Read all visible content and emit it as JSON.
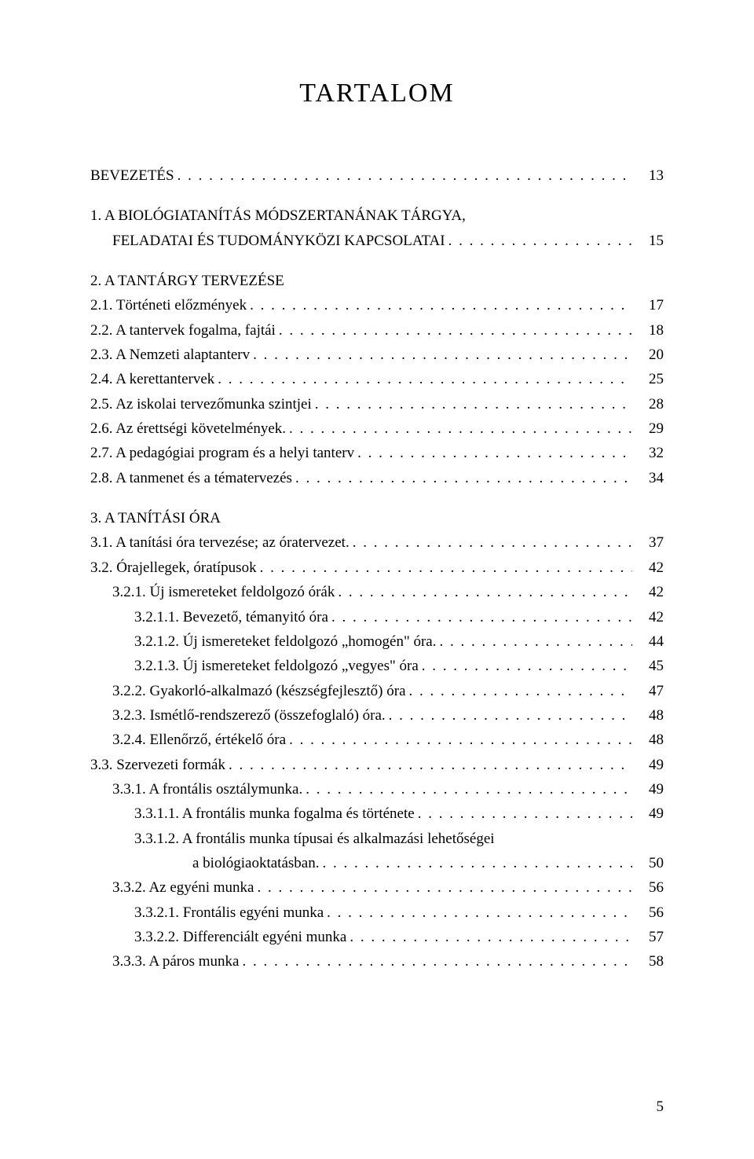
{
  "title": "TARTALOM",
  "page_number": "5",
  "typography": {
    "title_fontsize": 34,
    "body_fontsize": 19,
    "line_height": 1.65,
    "font_family": "Georgia, serif",
    "text_color": "#000000",
    "background_color": "#ffffff"
  },
  "entries": [
    {
      "type": "row",
      "indent": 0,
      "label": "BEVEZETÉS",
      "page": "13"
    },
    {
      "type": "multiline",
      "indent": 0,
      "lines": [
        "1. A BIOLÓGIATANÍTÁS MÓDSZERTANÁNAK TÁRGYA,"
      ],
      "last_label": "FELADATAI ÉS TUDOMÁNYKÖZI KAPCSOLATAI",
      "last_indent": 1,
      "page": "15"
    },
    {
      "type": "row",
      "indent": 0,
      "label": "2. A TANTÁRGY TERVEZÉSE",
      "page": "",
      "nodots": true
    },
    {
      "type": "row",
      "indent": 0,
      "label": "2.1. Történeti előzmények",
      "page": "17"
    },
    {
      "type": "row",
      "indent": 0,
      "label": "2.2. A tantervek fogalma, fajtái",
      "page": "18"
    },
    {
      "type": "row",
      "indent": 0,
      "label": "2.3. A Nemzeti alaptanterv",
      "page": "20"
    },
    {
      "type": "row",
      "indent": 0,
      "label": "2.4. A kerettantervek",
      "page": "25"
    },
    {
      "type": "row",
      "indent": 0,
      "label": "2.5. Az iskolai tervezőmunka szintjei",
      "page": "28"
    },
    {
      "type": "row",
      "indent": 0,
      "label": "2.6. Az érettségi követelmények.",
      "page": "29"
    },
    {
      "type": "row",
      "indent": 0,
      "label": "2.7. A pedagógiai program és a helyi tanterv",
      "page": "32"
    },
    {
      "type": "row",
      "indent": 0,
      "label": "2.8. A tanmenet és a tématervezés",
      "page": "34"
    },
    {
      "type": "row",
      "indent": 0,
      "label": "3. A TANÍTÁSI ÓRA",
      "page": "",
      "nodots": true
    },
    {
      "type": "row",
      "indent": 0,
      "label": "3.1. A tanítási óra tervezése; az óratervezet.",
      "page": "37"
    },
    {
      "type": "row",
      "indent": 0,
      "label": "3.2. Órajellegek, óratípusok",
      "page": "42"
    },
    {
      "type": "row",
      "indent": 1,
      "label": "3.2.1. Új ismereteket feldolgozó órák",
      "page": "42"
    },
    {
      "type": "row",
      "indent": 2,
      "label": "3.2.1.1. Bevezető, témanyitó óra",
      "page": "42"
    },
    {
      "type": "row",
      "indent": 2,
      "label": "3.2.1.2. Új ismereteket feldolgozó „homogén\" óra.",
      "page": "44"
    },
    {
      "type": "row",
      "indent": 2,
      "label": "3.2.1.3. Új ismereteket feldolgozó „vegyes\" óra",
      "page": "45"
    },
    {
      "type": "row",
      "indent": 1,
      "label": "3.2.2. Gyakorló-alkalmazó (készségfejlesztő) óra",
      "page": "47"
    },
    {
      "type": "row",
      "indent": 1,
      "label": "3.2.3. Ismétlő-rendszerező (összefoglaló) óra.",
      "page": "48"
    },
    {
      "type": "row",
      "indent": 1,
      "label": "3.2.4. Ellenőrző, értékelő óra",
      "page": "48"
    },
    {
      "type": "row",
      "indent": 0,
      "label": "3.3. Szervezeti formák",
      "page": "49"
    },
    {
      "type": "row",
      "indent": 1,
      "label": "3.3.1. A frontális osztálymunka.",
      "page": "49"
    },
    {
      "type": "row",
      "indent": 2,
      "label": "3.3.1.1. A frontális munka fogalma és története",
      "page": "49"
    },
    {
      "type": "multiline",
      "indent": 2,
      "lines": [
        "3.3.1.2. A frontális munka típusai és alkalmazási lehetőségei"
      ],
      "last_label": "a biológiaoktatásban.",
      "last_indent": "cont",
      "page": "50"
    },
    {
      "type": "row",
      "indent": 1,
      "label": "3.3.2. Az egyéni munka",
      "page": "56"
    },
    {
      "type": "row",
      "indent": 2,
      "label": "3.3.2.1. Frontális egyéni munka",
      "page": "56"
    },
    {
      "type": "row",
      "indent": 2,
      "label": "3.3.2.2. Differenciált egyéni munka",
      "page": "57"
    },
    {
      "type": "row",
      "indent": 1,
      "label": "3.3.3. A páros munka",
      "page": "58"
    }
  ]
}
